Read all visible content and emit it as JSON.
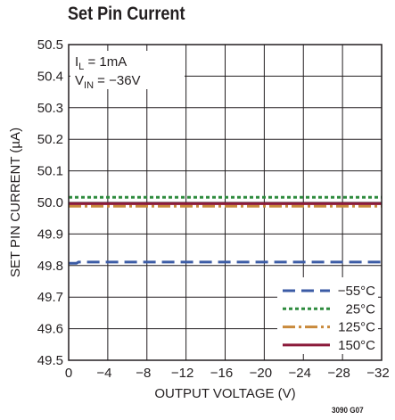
{
  "title": "Set Pin Current",
  "figure_number": "3090 G07",
  "chart_data": {
    "type": "line",
    "xlabel": "OUTPUT VOLTAGE (V)",
    "ylabel": "SET PIN CURRENT (µA)",
    "xlim": [
      0,
      -32
    ],
    "ylim": [
      49.5,
      50.5
    ],
    "x_ticks": [
      0,
      -4,
      -8,
      -12,
      -16,
      -20,
      -24,
      -28,
      -32
    ],
    "x_tick_labels": [
      "0",
      "−4",
      "−8",
      "−12",
      "−16",
      "−20",
      "−24",
      "−28",
      "−32"
    ],
    "y_ticks": [
      49.5,
      49.6,
      49.7,
      49.8,
      49.9,
      50.0,
      50.1,
      50.2,
      50.3,
      50.4,
      50.5
    ],
    "y_tick_labels": [
      "49.5",
      "49.6",
      "49.7",
      "49.8",
      "49.9",
      "50.0",
      "50.1",
      "50.2",
      "50.3",
      "50.4",
      "50.5"
    ],
    "grid": true,
    "legend_position": "bottom-right",
    "annotation": {
      "line1": {
        "main": "I",
        "sub": "L",
        "rest": " = 1mA"
      },
      "line2": {
        "main": "V",
        "sub": "IN",
        "rest": " = −36V"
      }
    },
    "series": [
      {
        "name": "−55°C",
        "color": "#3b5ba5",
        "dash": "14,7",
        "x": [
          0,
          -0.8,
          -1.0,
          -1.4,
          -32
        ],
        "y": [
          49.807,
          49.807,
          49.811,
          49.811,
          49.811
        ]
      },
      {
        "name": "25°C",
        "color": "#2e8b3e",
        "dash": "4,3",
        "x": [
          0,
          -32
        ],
        "y": [
          50.016,
          50.016
        ]
      },
      {
        "name": "125°C",
        "color": "#c98a3c",
        "dash": "14,4,3,4",
        "x": [
          0,
          -32
        ],
        "y": [
          49.988,
          49.988
        ]
      },
      {
        "name": "150°C",
        "color": "#8b1a3a",
        "dash": "",
        "x": [
          0,
          -32
        ],
        "y": [
          49.996,
          49.996
        ]
      }
    ]
  }
}
